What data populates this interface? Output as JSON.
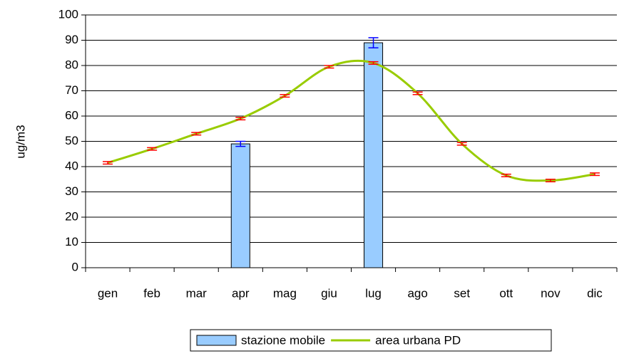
{
  "chart_data": {
    "type": "bar_line",
    "y_label": "ug/m3",
    "categories": [
      "gen",
      "feb",
      "mar",
      "apr",
      "mag",
      "giu",
      "lug",
      "ago",
      "set",
      "ott",
      "nov",
      "dic"
    ],
    "series": [
      {
        "name": "stazione mobile",
        "type": "bar",
        "color": "#99ccff",
        "error_color": "#0000ff",
        "values": [
          null,
          null,
          null,
          49,
          null,
          null,
          89,
          null,
          null,
          null,
          null,
          null
        ],
        "errors": [
          null,
          null,
          null,
          1,
          null,
          null,
          2,
          null,
          null,
          null,
          null,
          null
        ]
      },
      {
        "name": "area urbana PD",
        "type": "line",
        "smooth": true,
        "color": "#99cc00",
        "error_color": "#ff0000",
        "values": [
          41.5,
          47,
          53,
          59,
          68,
          79.5,
          81,
          69,
          49,
          36.5,
          34.5,
          37
        ],
        "errors": [
          0.5,
          0.5,
          0.5,
          0.5,
          0.5,
          0.5,
          0.5,
          0.5,
          0.5,
          0.5,
          0.5,
          0.5
        ]
      }
    ],
    "ylim": [
      0,
      100
    ],
    "yticks": [
      0,
      10,
      20,
      30,
      40,
      50,
      60,
      70,
      80,
      90,
      100
    ],
    "grid": true,
    "legend": "bottom"
  }
}
